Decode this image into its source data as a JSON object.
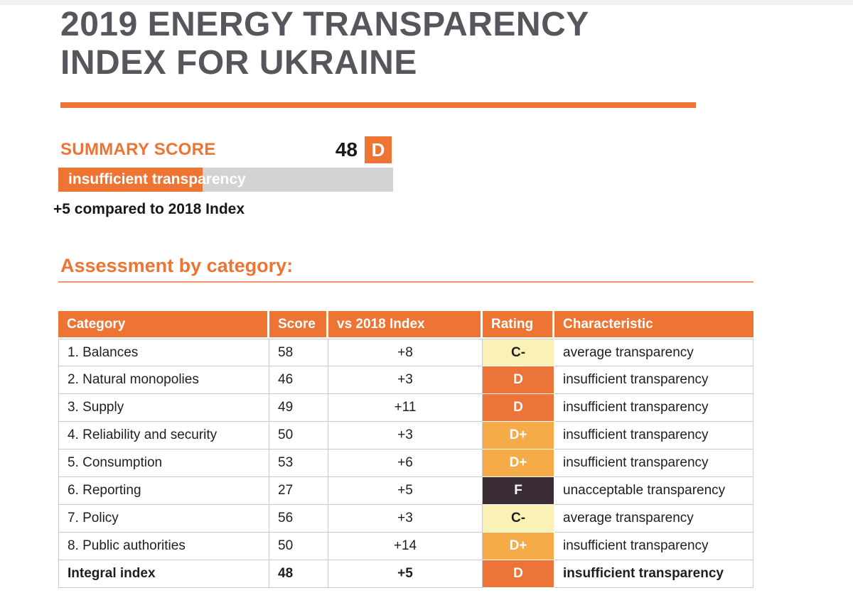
{
  "page": {
    "title_line1": "2019 ENERGY TRANSPARENCY",
    "title_line2": "INDEX FOR UKRAINE"
  },
  "summary": {
    "label": "SUMMARY SCORE",
    "score": "48",
    "grade": "D",
    "bar_label": "insufficient transparency",
    "bar_fill_percent": 43,
    "comparison": "+5 compared to 2018 Index"
  },
  "section": {
    "heading": "Assessment by category:"
  },
  "table": {
    "headers": [
      "Category",
      "Score",
      "vs 2018 Index",
      "Rating",
      "Characteristic"
    ],
    "rows": [
      {
        "category": "1. Balances",
        "score": "58",
        "vs2018": "+8",
        "rating": "C-",
        "characteristic": "average transparency",
        "bold": false
      },
      {
        "category": "2. Natural monopolies",
        "score": "46",
        "vs2018": "+3",
        "rating": "D",
        "characteristic": "insufficient transparency",
        "bold": false
      },
      {
        "category": "3. Supply",
        "score": "49",
        "vs2018": "+11",
        "rating": "D",
        "characteristic": "insufficient transparency",
        "bold": false
      },
      {
        "category": "4. Reliability and security",
        "score": "50",
        "vs2018": "+3",
        "rating": "D+",
        "characteristic": "insufficient transparency",
        "bold": false
      },
      {
        "category": "5. Consumption",
        "score": "53",
        "vs2018": "+6",
        "rating": "D+",
        "characteristic": "insufficient transparency",
        "bold": false
      },
      {
        "category": "6. Reporting",
        "score": "27",
        "vs2018": "+5",
        "rating": "F",
        "characteristic": "unacceptable transparency",
        "bold": false
      },
      {
        "category": "7. Policy",
        "score": "56",
        "vs2018": "+3",
        "rating": "C-",
        "characteristic": "average transparency",
        "bold": false
      },
      {
        "category": "8. Public authorities",
        "score": "50",
        "vs2018": "+14",
        "rating": "D+",
        "characteristic": "insufficient transparency",
        "bold": false
      },
      {
        "category": "Integral index",
        "score": "48",
        "vs2018": "+5",
        "rating": "D",
        "characteristic": "insufficient transparency",
        "bold": true
      }
    ]
  },
  "colors": {
    "accent_orange": "#ee7434",
    "title_gray": "#55575c",
    "bar_gray": "#d2d3d5",
    "rating": {
      "C-": {
        "bg": "#f9f1b5",
        "text": "#211d1e"
      },
      "D": {
        "bg": "#ec7439",
        "text": "#ffffff"
      },
      "D+": {
        "bg": "#f5ac48",
        "text": "#ffffff"
      },
      "F": {
        "bg": "#3a2c34",
        "text": "#ffffff"
      }
    }
  }
}
